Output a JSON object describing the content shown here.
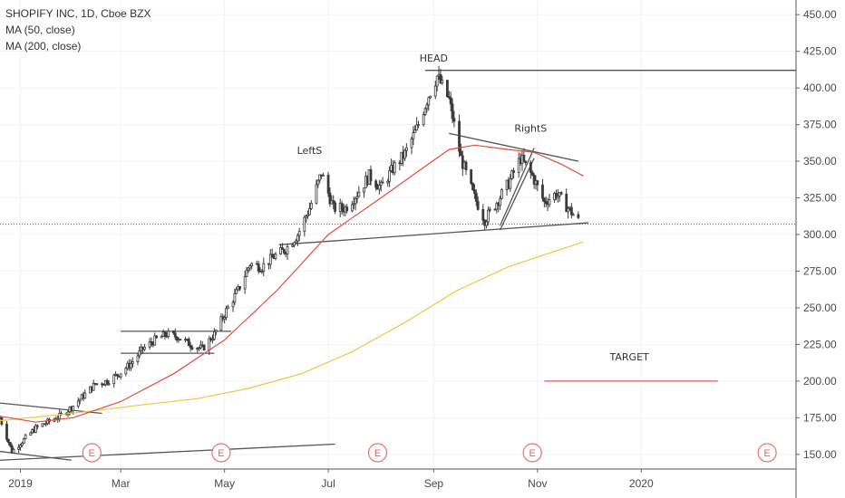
{
  "legend": {
    "title": "SHOPIFY INC, 1D, Cboe BZX",
    "ma50": "MA (50, close)",
    "ma200": "MA (200, close)"
  },
  "colors": {
    "candle": "#3a3a3a",
    "ma50": "#e74c3c",
    "ma200": "#f5c242",
    "trend": "#555555",
    "target": "#e57373",
    "earnings": "#e57373",
    "grid": "#f0f3fa",
    "axis": "#666666"
  },
  "chart_data": {
    "type": "line",
    "title": "SHOPIFY INC, 1D, Cboe BZX",
    "y_ticks": [
      150,
      175,
      200,
      225,
      250,
      275,
      300,
      325,
      350,
      375,
      400,
      425,
      450
    ],
    "x_ticks": [
      {
        "date": "2019-01-01",
        "label": "2019"
      },
      {
        "date": "2019-03-01",
        "label": "Mar"
      },
      {
        "date": "2019-05-01",
        "label": "May"
      },
      {
        "date": "2019-07-01",
        "label": "Jul"
      },
      {
        "date": "2019-09-01",
        "label": "Sep"
      },
      {
        "date": "2019-11-01",
        "label": "Nov"
      },
      {
        "date": "2020-01-01",
        "label": "2020"
      }
    ],
    "ylim": [
      140,
      460
    ],
    "xlim": [
      "2018-12-20",
      "2020-04-01"
    ],
    "current_price": 307,
    "price_path": [
      [
        "2018-12-20",
        175
      ],
      [
        "2018-12-27",
        152
      ],
      [
        "2019-01-03",
        160
      ],
      [
        "2019-01-10",
        168
      ],
      [
        "2019-01-17",
        172
      ],
      [
        "2019-01-24",
        176
      ],
      [
        "2019-01-31",
        182
      ],
      [
        "2019-02-07",
        190
      ],
      [
        "2019-02-14",
        198
      ],
      [
        "2019-02-21",
        200
      ],
      [
        "2019-02-28",
        205
      ],
      [
        "2019-03-07",
        212
      ],
      [
        "2019-03-14",
        222
      ],
      [
        "2019-03-21",
        228
      ],
      [
        "2019-03-28",
        232
      ],
      [
        "2019-04-04",
        230
      ],
      [
        "2019-04-11",
        225
      ],
      [
        "2019-04-18",
        222
      ],
      [
        "2019-04-25",
        232
      ],
      [
        "2019-05-02",
        248
      ],
      [
        "2019-05-09",
        262
      ],
      [
        "2019-05-16",
        280
      ],
      [
        "2019-05-23",
        278
      ],
      [
        "2019-05-30",
        285
      ],
      [
        "2019-06-06",
        290
      ],
      [
        "2019-06-13",
        300
      ],
      [
        "2019-06-20",
        318
      ],
      [
        "2019-06-27",
        342
      ],
      [
        "2019-07-04",
        318
      ],
      [
        "2019-07-11",
        318
      ],
      [
        "2019-07-18",
        328
      ],
      [
        "2019-07-25",
        340
      ],
      [
        "2019-08-01",
        332
      ],
      [
        "2019-08-08",
        345
      ],
      [
        "2019-08-15",
        355
      ],
      [
        "2019-08-22",
        372
      ],
      [
        "2019-08-29",
        395
      ],
      [
        "2019-09-03",
        408
      ],
      [
        "2019-09-10",
        392
      ],
      [
        "2019-09-17",
        352
      ],
      [
        "2019-09-24",
        328
      ],
      [
        "2019-10-01",
        310
      ],
      [
        "2019-10-08",
        322
      ],
      [
        "2019-10-15",
        335
      ],
      [
        "2019-10-22",
        352
      ],
      [
        "2019-10-29",
        340
      ],
      [
        "2019-11-05",
        322
      ],
      [
        "2019-11-12",
        328
      ],
      [
        "2019-11-19",
        318
      ],
      [
        "2019-11-26",
        308
      ]
    ],
    "ma50": [
      [
        "2018-12-20",
        176
      ],
      [
        "2019-01-10",
        172
      ],
      [
        "2019-02-01",
        175
      ],
      [
        "2019-03-01",
        186
      ],
      [
        "2019-04-01",
        205
      ],
      [
        "2019-05-01",
        228
      ],
      [
        "2019-06-01",
        262
      ],
      [
        "2019-07-01",
        300
      ],
      [
        "2019-08-01",
        325
      ],
      [
        "2019-08-25",
        345
      ],
      [
        "2019-09-10",
        358
      ],
      [
        "2019-09-25",
        361
      ],
      [
        "2019-10-15",
        358
      ],
      [
        "2019-10-30",
        356
      ],
      [
        "2019-11-15",
        348
      ],
      [
        "2019-11-28",
        340
      ]
    ],
    "ma200": [
      [
        "2018-12-20",
        173
      ],
      [
        "2019-01-15",
        176
      ],
      [
        "2019-02-15",
        180
      ],
      [
        "2019-03-15",
        184
      ],
      [
        "2019-04-15",
        188
      ],
      [
        "2019-05-15",
        195
      ],
      [
        "2019-06-15",
        205
      ],
      [
        "2019-07-15",
        220
      ],
      [
        "2019-08-15",
        240
      ],
      [
        "2019-09-15",
        262
      ],
      [
        "2019-10-15",
        278
      ],
      [
        "2019-11-15",
        290
      ],
      [
        "2019-11-28",
        295
      ]
    ],
    "trend_lines": [
      {
        "from": [
          "2018-12-20",
          185
        ],
        "to": [
          "2019-02-18",
          178
        ]
      },
      {
        "from": [
          "2018-12-20",
          152
        ],
        "to": [
          "2019-01-31",
          146
        ]
      },
      {
        "from": [
          "2018-12-20",
          146
        ],
        "to": [
          "2019-07-05",
          157
        ]
      },
      {
        "from": [
          "2019-03-01",
          219
        ],
        "to": [
          "2019-04-25",
          219
        ]
      },
      {
        "from": [
          "2019-03-01",
          234
        ],
        "to": [
          "2019-05-05",
          234
        ]
      },
      {
        "from": [
          "2019-06-02",
          293
        ],
        "to": [
          "2019-12-01",
          308
        ]
      },
      {
        "from": [
          "2019-08-27",
          412
        ],
        "to": [
          "2020-04-01",
          412
        ]
      },
      {
        "from": [
          "2019-09-10",
          369
        ],
        "to": [
          "2019-11-25",
          350
        ]
      },
      {
        "from": [
          "2019-10-10",
          306
        ],
        "to": [
          "2019-10-30",
          359
        ]
      },
      {
        "from": [
          "2019-10-10",
          303
        ],
        "to": [
          "2019-10-30",
          352
        ]
      }
    ],
    "annotations": [
      {
        "text": "HEAD",
        "date": "2019-09-01",
        "price": 418
      },
      {
        "text": "LeftS",
        "date": "2019-06-20",
        "price": 355
      },
      {
        "text": "RightS",
        "date": "2019-10-28",
        "price": 370
      },
      {
        "text": "TARGET",
        "date": "2019-12-25",
        "price": 214
      }
    ],
    "target_line": {
      "from": "2019-11-05",
      "to": "2020-02-15",
      "price": 200
    },
    "earnings": [
      {
        "date": "2019-02-12",
        "label": "E"
      },
      {
        "date": "2019-04-29",
        "label": "E"
      },
      {
        "date": "2019-07-30",
        "label": "E"
      },
      {
        "date": "2019-10-29",
        "label": "E"
      },
      {
        "date": "2020-03-15",
        "label": "E"
      }
    ]
  }
}
